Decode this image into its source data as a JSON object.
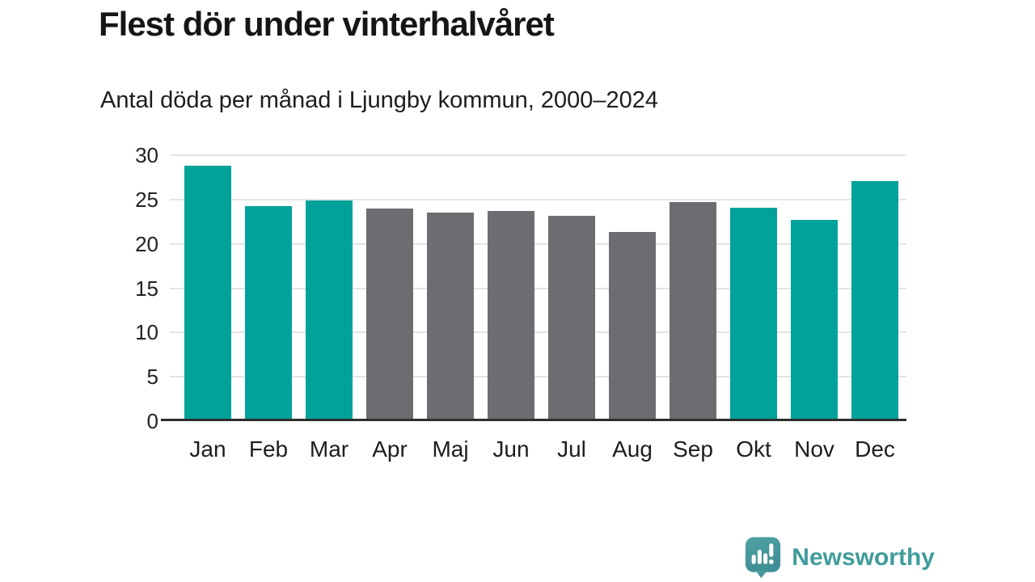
{
  "header": {
    "title": "Flest dör under vinterhalvåret",
    "subtitle": "Antal döda per månad i Ljungby kommun, 2000–2024"
  },
  "chart_data": {
    "type": "bar",
    "categories": [
      "Jan",
      "Feb",
      "Mar",
      "Apr",
      "Maj",
      "Jun",
      "Jul",
      "Aug",
      "Sep",
      "Okt",
      "Nov",
      "Dec"
    ],
    "values": [
      28.8,
      24.3,
      24.9,
      24.0,
      23.5,
      23.7,
      23.2,
      21.3,
      24.7,
      24.1,
      22.7,
      27.1
    ],
    "highlighted": [
      true,
      true,
      true,
      false,
      false,
      false,
      false,
      false,
      false,
      true,
      true,
      true
    ],
    "title": "Flest dör under vinterhalvåret",
    "subtitle": "Antal döda per månad i Ljungby kommun, 2000–2024",
    "xlabel": "",
    "ylabel": "",
    "ylim": [
      0,
      30
    ],
    "yticks": [
      0,
      5,
      10,
      15,
      20,
      25,
      30
    ],
    "grid": true,
    "legend": false,
    "colors": {
      "highlight": "#00a29a",
      "default": "#6d6d71",
      "gridline": "#e4e4e4",
      "axis": "#2e2e2e"
    }
  },
  "footer": {
    "brand": "Newsworthy",
    "brand_color": "#3f9c9b",
    "logo_color": "#4a9e9e"
  }
}
